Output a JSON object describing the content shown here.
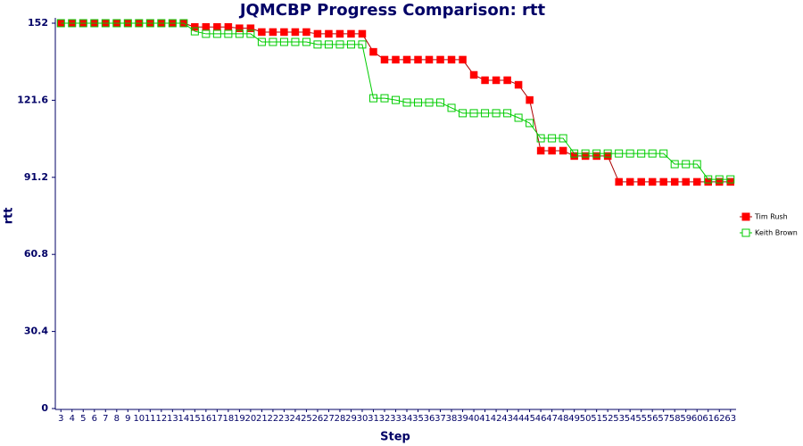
{
  "chart_data": {
    "type": "line",
    "title": "JQMCBP Progress Comparison: rtt",
    "x_label": "Step",
    "y_label": "rtt",
    "categories": [
      3,
      4,
      5,
      6,
      7,
      8,
      9,
      10,
      11,
      12,
      13,
      14,
      15,
      16,
      17,
      18,
      19,
      20,
      21,
      22,
      23,
      24,
      25,
      26,
      27,
      28,
      29,
      30,
      31,
      32,
      33,
      34,
      35,
      36,
      37,
      38,
      39,
      40,
      41,
      42,
      43,
      44,
      45,
      46,
      47,
      48,
      49,
      50,
      51,
      52,
      53,
      54,
      55,
      56,
      57,
      58,
      59,
      60,
      61,
      62,
      63
    ],
    "series": [
      {
        "name": "Tim Rush",
        "color": "#ff0000",
        "values": [
          152,
          152,
          152,
          152,
          152,
          152,
          152,
          152,
          152,
          152,
          152,
          152,
          150.5,
          150.5,
          150.5,
          150.5,
          150,
          150,
          148.5,
          148.5,
          148.5,
          148.5,
          148.5,
          147.8,
          147.8,
          147.8,
          147.8,
          147.8,
          140.7,
          137.6,
          137.6,
          137.6,
          137.6,
          137.6,
          137.6,
          137.6,
          137.6,
          131.6,
          129.5,
          129.5,
          129.5,
          127.7,
          121.7,
          101.7,
          101.7,
          101.7,
          99.6,
          99.6,
          99.6,
          99.6,
          89.4,
          89.4,
          89.4,
          89.4,
          89.4,
          89.4,
          89.4,
          89.4,
          89.4,
          89.4,
          89.4
        ]
      },
      {
        "name": "Keith Brown",
        "color": "#00cc00",
        "values": [
          152,
          152,
          152,
          152,
          152,
          152,
          152,
          152,
          152,
          152,
          152,
          152,
          148.8,
          147.8,
          147.8,
          147.8,
          147.8,
          147.8,
          144.6,
          144.6,
          144.6,
          144.6,
          144.6,
          143.6,
          143.6,
          143.6,
          143.6,
          143.6,
          122.4,
          122.4,
          121.7,
          120.7,
          120.7,
          120.7,
          120.7,
          118.6,
          116.5,
          116.5,
          116.5,
          116.5,
          116.5,
          114.7,
          112.6,
          106.6,
          106.6,
          106.6,
          100.6,
          100.6,
          100.6,
          100.6,
          100.6,
          100.6,
          100.6,
          100.6,
          100.6,
          96.4,
          96.4,
          96.4,
          90.4,
          90.4,
          90.4
        ]
      }
    ],
    "ylim": [
      0,
      152
    ],
    "yticks": [
      0,
      30.4,
      60.8,
      91.2,
      121.6,
      152
    ],
    "legend": "right"
  }
}
